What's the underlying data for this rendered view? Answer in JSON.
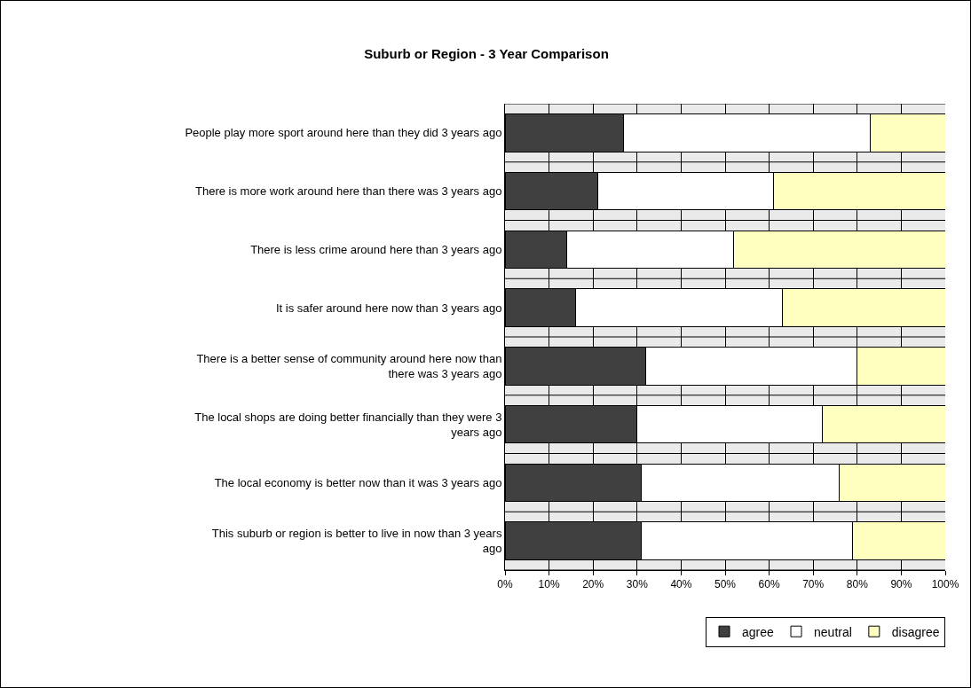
{
  "chart_data": {
    "type": "bar",
    "orientation": "horizontal",
    "stacked": true,
    "title": "Suburb or Region - 3 Year Comparison",
    "categories": [
      "People play more sport around here than they did 3 years ago",
      "There is more work around here than there was 3 years ago",
      "There is less crime around here than 3 years ago",
      "It is safer around here now than 3 years ago",
      "There is a better sense of community around here now than there was 3 years ago",
      "The local shops are doing better financially than they were 3 years ago",
      "The local economy is better now than it was 3 years ago",
      "This suburb or region is better to live in now than 3 years ago"
    ],
    "series": [
      {
        "name": "agree",
        "color": "#404040",
        "values": [
          27,
          21,
          14,
          16,
          32,
          30,
          31,
          31
        ]
      },
      {
        "name": "neutral",
        "color": "#ffffff",
        "values": [
          56,
          40,
          38,
          47,
          48,
          42,
          45,
          48
        ]
      },
      {
        "name": "disagree",
        "color": "#ffffc0",
        "values": [
          17,
          39,
          48,
          37,
          20,
          28,
          24,
          21
        ]
      }
    ],
    "xlim": [
      0,
      100
    ],
    "xticks": [
      {
        "value": 0,
        "label": "0%"
      },
      {
        "value": 10,
        "label": "10%"
      },
      {
        "value": 20,
        "label": "20%"
      },
      {
        "value": 30,
        "label": "30%"
      },
      {
        "value": 40,
        "label": "40%"
      },
      {
        "value": 50,
        "label": "50%"
      },
      {
        "value": 60,
        "label": "60%"
      },
      {
        "value": 70,
        "label": "70%"
      },
      {
        "value": 80,
        "label": "80%"
      },
      {
        "value": 90,
        "label": "90%"
      },
      {
        "value": 100,
        "label": "100%"
      }
    ],
    "grid": true,
    "legend": "bottom right"
  }
}
